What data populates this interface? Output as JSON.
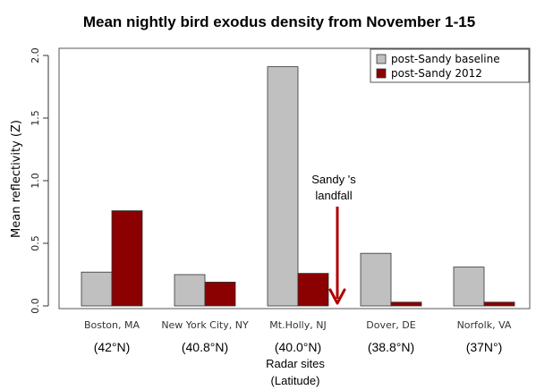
{
  "chart_data": {
    "type": "bar",
    "title": "Mean nightly bird exodus density from November 1-15",
    "ylabel": "Mean reflectivity (Z)",
    "xlabel_lines": [
      "Radar sites",
      "(Latitude)"
    ],
    "ylim": [
      0,
      2.0
    ],
    "yticks": [
      "0.0",
      "0.5",
      "1.0",
      "1.5",
      "2.0"
    ],
    "categories": [
      "Boston, MA",
      "New York City, NY",
      "Mt.Holly, NJ",
      "Dover, DE",
      "Norfolk, VA"
    ],
    "latitudes": [
      "(42°N)",
      "(40.8°N)",
      "(40.0°N)",
      "(38.8°N)",
      "(37N°)"
    ],
    "series": [
      {
        "name": "post-Sandy baseline",
        "color": "#c0c0c0",
        "values": [
          0.27,
          0.25,
          1.91,
          0.42,
          0.31
        ]
      },
      {
        "name": "post-Sandy 2012",
        "color": "#8b0000",
        "values": [
          0.76,
          0.19,
          0.26,
          0.03,
          0.03
        ]
      }
    ],
    "annotation": {
      "lines": [
        "Sandy 's",
        "landfall"
      ],
      "arrow_color": "#b00000"
    },
    "legend_position": "top-right",
    "grid": false
  }
}
